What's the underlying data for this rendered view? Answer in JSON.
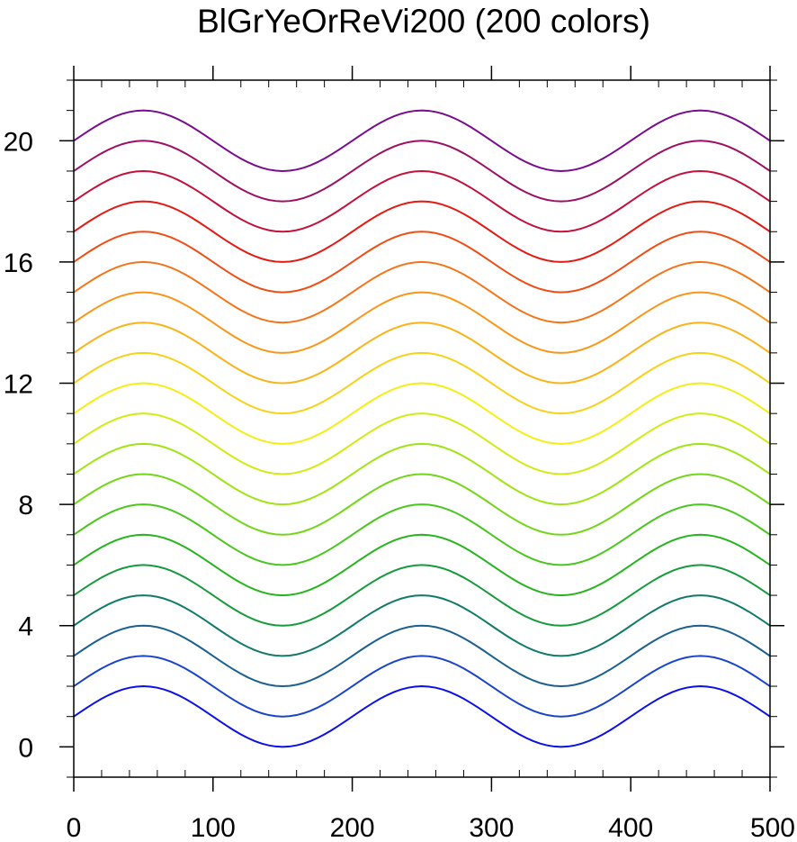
{
  "chart_data": {
    "type": "line",
    "title": "BlGrYeOrReVi200 (200 colors)",
    "xlabel": "",
    "ylabel": "",
    "xlim": [
      0,
      500
    ],
    "ylim": [
      -1,
      22
    ],
    "x_ticks": [
      0,
      100,
      200,
      300,
      400,
      500
    ],
    "x_tick_labels": [
      "0",
      "100",
      "200",
      "300",
      "400",
      "500"
    ],
    "x_minor_step": 20,
    "y_ticks": [
      0,
      4,
      8,
      12,
      16,
      20
    ],
    "y_tick_labels": [
      "0",
      "4",
      "8",
      "12",
      "16",
      "20"
    ],
    "y_minor_step": 1,
    "grid": false,
    "legend": "none",
    "curve": {
      "function": "offset + 1 + sin(2*pi*x/200)",
      "x_step": 5,
      "offsets": [
        0,
        1,
        2,
        3,
        4,
        5,
        6,
        7,
        8,
        9,
        10,
        11,
        12,
        13,
        14,
        15,
        16,
        17,
        18,
        19
      ]
    },
    "series_colors": [
      "#0a10e6",
      "#1a44c8",
      "#1a6090",
      "#127a6a",
      "#169a3c",
      "#26b41e",
      "#4ac61e",
      "#74d61a",
      "#a0e414",
      "#d0ec12",
      "#f4ee14",
      "#f8d21a",
      "#f8b41a",
      "#f8961a",
      "#f4741a",
      "#ee4e16",
      "#e21c14",
      "#c2123c",
      "#9c1064",
      "#7a0a8e"
    ]
  }
}
